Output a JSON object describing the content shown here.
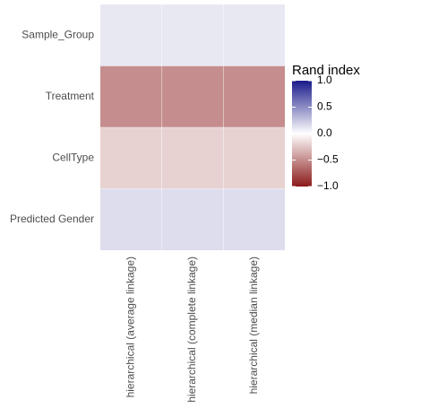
{
  "chart_data": {
    "type": "heatmap",
    "x_categories": [
      "hierarchical (average linkage)",
      "hierarchical (complete linkage)",
      "hierarchical (median linkage)"
    ],
    "y_categories": [
      "Sample_Group",
      "Treatment",
      "CellType",
      "Predicted Gender"
    ],
    "values": [
      [
        0.1,
        0.1,
        0.1
      ],
      [
        -0.5,
        -0.5,
        -0.5
      ],
      [
        -0.2,
        -0.2,
        -0.2
      ],
      [
        0.15,
        0.15,
        0.15
      ]
    ],
    "legend": {
      "title": "Rand index",
      "placement": "right",
      "range": [
        -1.0,
        1.0
      ],
      "ticks": [
        1.0,
        0.5,
        0.0,
        -0.5,
        -1.0
      ],
      "tick_labels": [
        "1.0",
        "0.5",
        "0.0",
        "−0.5",
        "−1.0"
      ],
      "colors": {
        "low": "#8b1a1a",
        "mid": "#ffffff",
        "high": "#1a1a8b"
      }
    },
    "grid": true
  }
}
